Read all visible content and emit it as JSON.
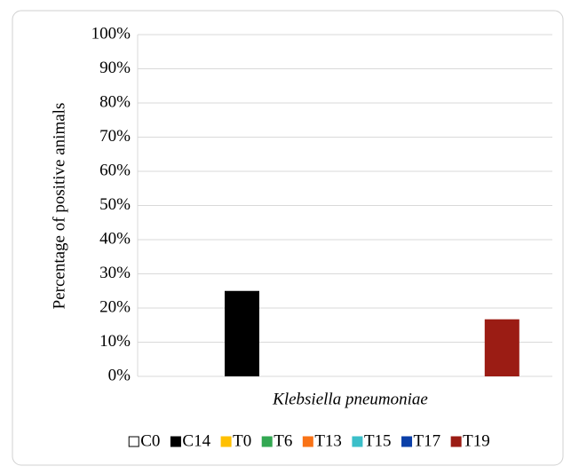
{
  "chart_data": {
    "type": "bar",
    "ylabel": "Percentage of positive animals",
    "categories": [
      "Klebsiella pneumoniae"
    ],
    "series": [
      {
        "name": "C0",
        "color": "#ffffff",
        "edge_color": "#000000",
        "values": [
          0
        ]
      },
      {
        "name": "C14",
        "color": "#000000",
        "values": [
          25
        ]
      },
      {
        "name": "T0",
        "color": "#ffc000",
        "values": [
          0
        ]
      },
      {
        "name": "T6",
        "color": "#33a852",
        "values": [
          0
        ]
      },
      {
        "name": "T13",
        "color": "#f97316",
        "values": [
          0
        ]
      },
      {
        "name": "T15",
        "color": "#3bbfc9",
        "values": [
          0
        ]
      },
      {
        "name": "T17",
        "color": "#0b3fa8",
        "values": [
          0
        ]
      },
      {
        "name": "T19",
        "color": "#9b1c14",
        "values": [
          16.7
        ]
      }
    ],
    "ylim": [
      0,
      100
    ],
    "yticks": [
      {
        "value": 0,
        "label": "0%"
      },
      {
        "value": 10,
        "label": "10%"
      },
      {
        "value": 20,
        "label": "20%"
      },
      {
        "value": 30,
        "label": "30%"
      },
      {
        "value": 40,
        "label": "40%"
      },
      {
        "value": 50,
        "label": "50%"
      },
      {
        "value": 60,
        "label": "60%"
      },
      {
        "value": 70,
        "label": "70%"
      },
      {
        "value": 80,
        "label": "80%"
      },
      {
        "value": 90,
        "label": "90%"
      },
      {
        "value": 100,
        "label": "100%"
      }
    ],
    "grid": true,
    "legend": "bottom"
  }
}
